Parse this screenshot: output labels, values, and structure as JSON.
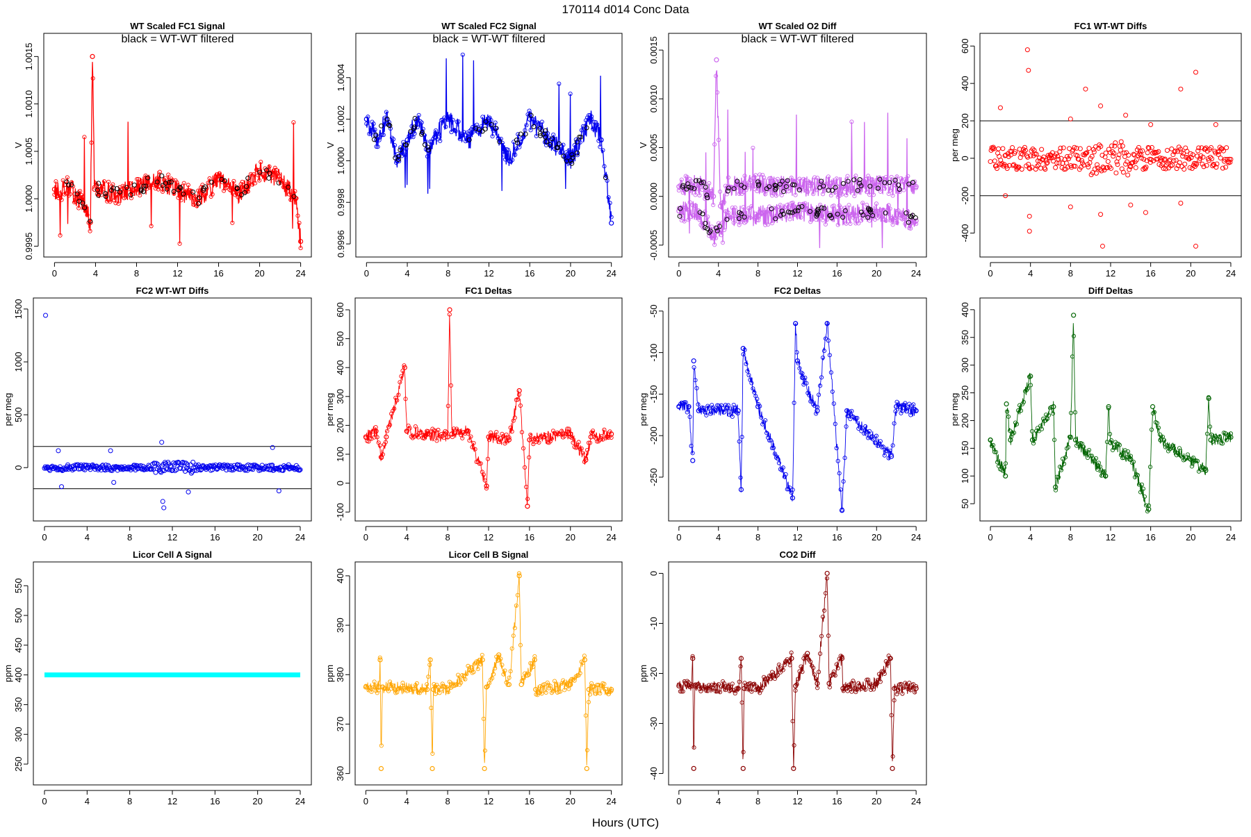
{
  "figure": {
    "title": "170114    d014    Conc Data",
    "xlabel": "Hours (UTC)",
    "xticks": [
      0,
      4,
      8,
      12,
      16,
      20,
      24
    ]
  },
  "chart_data": [
    {
      "type": "line",
      "title": "WT Scaled FC1 Signal",
      "annotation": "black = WT-WT filtered",
      "ylabel": "V",
      "yticks": [
        "0.9995",
        "1.0000",
        "1.0005",
        "1.0010",
        "1.0015"
      ],
      "xlim": [
        0,
        24
      ],
      "ylim": [
        0.99948,
        1.00165
      ],
      "color": "#ff0000",
      "series": [
        {
          "values_by_hour": [
            [
              0,
              1.0001
            ],
            [
              0.5,
              1.00005
            ],
            [
              1,
              1.00015
            ],
            [
              2,
              1.00005
            ],
            [
              3,
              0.9999
            ],
            [
              3.5,
              0.99975
            ],
            [
              3.7,
              1.0015
            ],
            [
              3.9,
              1.0001
            ],
            [
              4.5,
              1.0001
            ],
            [
              6,
              1.00005
            ],
            [
              8,
              1.0001
            ],
            [
              10,
              1.0002
            ],
            [
              12,
              1.0001
            ],
            [
              14,
              1.0
            ],
            [
              16,
              1.0002
            ],
            [
              18,
              1.00005
            ],
            [
              20,
              1.0003
            ],
            [
              22,
              1.0002
            ],
            [
              23.5,
              1.0
            ],
            [
              24,
              0.99955
            ]
          ]
        }
      ]
    },
    {
      "type": "line",
      "title": "WT Scaled FC2 Signal",
      "annotation": "black = WT-WT filtered",
      "ylabel": "V",
      "yticks": [
        "0.9996",
        "0.9998",
        "1.0000",
        "1.0002",
        "1.0004"
      ],
      "xlim": [
        0,
        24
      ],
      "ylim": [
        0.99958,
        1.00057
      ],
      "color": "#0000ee",
      "series": [
        {
          "values_by_hour": [
            [
              0,
              1.0002
            ],
            [
              1,
              1.0001
            ],
            [
              2,
              1.0002
            ],
            [
              3,
              1.0
            ],
            [
              4,
              1.0001
            ],
            [
              5,
              1.0002
            ],
            [
              6,
              1.00005
            ],
            [
              8,
              1.0002
            ],
            [
              10,
              1.0001
            ],
            [
              12,
              1.0002
            ],
            [
              14,
              1.0
            ],
            [
              16,
              1.0002
            ],
            [
              18,
              1.0001
            ],
            [
              20,
              1.0
            ],
            [
              22,
              1.0002
            ],
            [
              23,
              1.0001
            ],
            [
              24,
              0.9997
            ]
          ]
        }
      ]
    },
    {
      "type": "line",
      "title": "WT Scaled O2 Diff",
      "annotation": "black = WT-WT filtered",
      "ylabel": "V",
      "yticks": [
        "-0.0005",
        "0.0000",
        "0.0005",
        "0.0010",
        "0.0015"
      ],
      "xlim": [
        0,
        24
      ],
      "ylim": [
        -0.00053,
        0.00158
      ],
      "color": "#cc66ee",
      "series": [
        {
          "name": "upper",
          "values_by_hour": [
            [
              0,
              0.0001
            ],
            [
              2,
              0.00012
            ],
            [
              3.5,
              0.0
            ],
            [
              3.8,
              0.0014
            ],
            [
              4.2,
              -0.0001
            ],
            [
              5,
              0.0001
            ],
            [
              8,
              0.00012
            ],
            [
              12,
              0.0001
            ],
            [
              16,
              0.0001
            ],
            [
              20,
              0.00012
            ],
            [
              24,
              0.0001
            ]
          ]
        },
        {
          "name": "lower",
          "values_by_hour": [
            [
              0,
              -0.00015
            ],
            [
              2,
              -0.00015
            ],
            [
              3.5,
              -0.0004
            ],
            [
              4.2,
              -0.00035
            ],
            [
              5,
              -0.0002
            ],
            [
              8,
              -0.0002
            ],
            [
              12,
              -0.00015
            ],
            [
              16,
              -0.0002
            ],
            [
              20,
              -0.00015
            ],
            [
              24,
              -0.00025
            ]
          ]
        }
      ]
    },
    {
      "type": "scatter",
      "title": "FC1 WT-WT Diffs",
      "ylabel": "per meg",
      "yticks": [
        "-400",
        "-200",
        "0",
        "200",
        "400",
        "600"
      ],
      "xlim": [
        0,
        24
      ],
      "ylim": [
        -480,
        620
      ],
      "hlines": [
        200,
        -200
      ],
      "color": "#ff0000",
      "series": [
        {
          "points": [
            [
              1,
              270
            ],
            [
              1.5,
              -200
            ],
            [
              3.7,
              580
            ],
            [
              3.8,
              470
            ],
            [
              3.9,
              -310
            ],
            [
              3.9,
              -390
            ],
            [
              8,
              210
            ],
            [
              8,
              -260
            ],
            [
              9.5,
              370
            ],
            [
              11,
              280
            ],
            [
              11,
              -300
            ],
            [
              11.2,
              -470
            ],
            [
              13.5,
              230
            ],
            [
              14,
              -250
            ],
            [
              15.5,
              -290
            ],
            [
              16,
              180
            ],
            [
              19,
              370
            ],
            [
              19,
              -240
            ],
            [
              20.5,
              460
            ],
            [
              20.5,
              -470
            ],
            [
              22.5,
              180
            ]
          ]
        }
      ]
    },
    {
      "type": "scatter",
      "title": "FC2 WT-WT Diffs",
      "ylabel": "per meg",
      "yticks": [
        "0",
        "500",
        "1000",
        "1500"
      ],
      "xlim": [
        0,
        24
      ],
      "ylim": [
        -420,
        1520
      ],
      "hlines": [
        200,
        -200
      ],
      "color": "#0000ee",
      "series": [
        {
          "points": [
            [
              0.1,
              1440
            ],
            [
              1.3,
              160
            ],
            [
              1.6,
              -180
            ],
            [
              6.2,
              160
            ],
            [
              6.5,
              -140
            ],
            [
              11,
              240
            ],
            [
              11.1,
              -320
            ],
            [
              11.2,
              -380
            ],
            [
              13.5,
              -230
            ],
            [
              21.4,
              190
            ],
            [
              22,
              -220
            ]
          ]
        }
      ]
    },
    {
      "type": "line",
      "title": "FC1 Deltas",
      "ylabel": "per meg",
      "yticks": [
        "-100",
        "0",
        "100",
        "200",
        "300",
        "400",
        "500",
        "600"
      ],
      "xlim": [
        0,
        24
      ],
      "ylim": [
        -100,
        610
      ],
      "color": "#ff0000",
      "series": [
        {
          "values_by_hour": [
            [
              0,
              160
            ],
            [
              1,
              180
            ],
            [
              1.5,
              90
            ],
            [
              2,
              160
            ],
            [
              3.8,
              400
            ],
            [
              4,
              180
            ],
            [
              6,
              170
            ],
            [
              8,
              160
            ],
            [
              8.2,
              600
            ],
            [
              8.4,
              170
            ],
            [
              10,
              180
            ],
            [
              11.8,
              -10
            ],
            [
              12,
              160
            ],
            [
              14,
              150
            ],
            [
              15,
              320
            ],
            [
              15.8,
              -80
            ],
            [
              16,
              150
            ],
            [
              20,
              170
            ],
            [
              21.5,
              80
            ],
            [
              22,
              160
            ],
            [
              24,
              170
            ]
          ]
        }
      ]
    },
    {
      "type": "line",
      "title": "FC2 Deltas",
      "ylabel": "per meg",
      "yticks": [
        "-250",
        "-200",
        "-150",
        "-100",
        "-50"
      ],
      "xlim": [
        0,
        24
      ],
      "ylim": [
        -292,
        -45
      ],
      "color": "#0000ee",
      "series": [
        {
          "values_by_hour": [
            [
              0,
              -165
            ],
            [
              1,
              -165
            ],
            [
              1.4,
              -230
            ],
            [
              1.5,
              -110
            ],
            [
              2,
              -170
            ],
            [
              6,
              -170
            ],
            [
              6.3,
              -265
            ],
            [
              6.5,
              -95
            ],
            [
              8,
              -165
            ],
            [
              11.5,
              -275
            ],
            [
              11.8,
              -65
            ],
            [
              12,
              -110
            ],
            [
              12.5,
              -130
            ],
            [
              14,
              -170
            ],
            [
              15,
              -65
            ],
            [
              16.5,
              -290
            ],
            [
              17,
              -170
            ],
            [
              21.5,
              -225
            ],
            [
              22,
              -165
            ],
            [
              24,
              -170
            ]
          ]
        }
      ]
    },
    {
      "type": "line",
      "title": "Diff Deltas",
      "ylabel": "per meg",
      "yticks": [
        "50",
        "100",
        "150",
        "200",
        "250",
        "300",
        "350",
        "400"
      ],
      "xlim": [
        0,
        24
      ],
      "ylim": [
        35,
        405
      ],
      "color": "#006400",
      "series": [
        {
          "values_by_hour": [
            [
              0,
              165
            ],
            [
              1.5,
              100
            ],
            [
              1.6,
              230
            ],
            [
              2,
              165
            ],
            [
              4,
              280
            ],
            [
              4.2,
              165
            ],
            [
              6.3,
              225
            ],
            [
              6.5,
              80
            ],
            [
              8,
              170
            ],
            [
              8.3,
              390
            ],
            [
              8.5,
              165
            ],
            [
              11.5,
              100
            ],
            [
              11.8,
              225
            ],
            [
              12,
              160
            ],
            [
              14,
              130
            ],
            [
              15.8,
              40
            ],
            [
              16.2,
              225
            ],
            [
              17,
              165
            ],
            [
              21.5,
              110
            ],
            [
              21.8,
              240
            ],
            [
              22,
              165
            ],
            [
              24,
              170
            ]
          ]
        }
      ]
    },
    {
      "type": "line",
      "title": "Licor Cell A Signal",
      "ylabel": "ppm",
      "yticks": [
        "250",
        "300",
        "350",
        "400",
        "450",
        "500",
        "550"
      ],
      "xlim": [
        0,
        24
      ],
      "ylim": [
        230,
        575
      ],
      "color": "#00ffff",
      "series": [
        {
          "values_by_hour": [
            [
              0,
              400
            ],
            [
              24,
              400
            ]
          ]
        }
      ]
    },
    {
      "type": "line",
      "title": "Licor Cell B Signal",
      "ylabel": "ppm",
      "yticks": [
        "360",
        "370",
        "380",
        "390",
        "400"
      ],
      "xlim": [
        0,
        24
      ],
      "ylim": [
        359.5,
        401
      ],
      "color": "#ffa500",
      "series": [
        {
          "values_by_hour": [
            [
              0,
              377.5
            ],
            [
              1.3,
              377.5
            ],
            [
              1.4,
              383
            ],
            [
              1.5,
              361
            ],
            [
              1.6,
              377.5
            ],
            [
              6,
              377
            ],
            [
              6.3,
              383
            ],
            [
              6.5,
              361
            ],
            [
              6.6,
              377
            ],
            [
              8,
              377
            ],
            [
              11.4,
              383
            ],
            [
              11.6,
              361
            ],
            [
              11.8,
              377.5
            ],
            [
              13,
              384
            ],
            [
              14,
              378
            ],
            [
              15,
              400
            ],
            [
              15.2,
              378
            ],
            [
              16.5,
              383
            ],
            [
              16.6,
              377
            ],
            [
              20,
              378
            ],
            [
              21.4,
              383
            ],
            [
              21.6,
              361
            ],
            [
              21.8,
              377
            ],
            [
              24,
              377
            ]
          ]
        }
      ]
    },
    {
      "type": "line",
      "title": "CO2 Diff",
      "ylabel": "ppm",
      "yticks": [
        "-40",
        "-30",
        "-20",
        "-10",
        "0"
      ],
      "xlim": [
        0,
        24
      ],
      "ylim": [
        -40.5,
        0.5
      ],
      "color": "#8b0000",
      "series": [
        {
          "values_by_hour": [
            [
              0,
              -22.5
            ],
            [
              1.3,
              -22.5
            ],
            [
              1.4,
              -17
            ],
            [
              1.5,
              -39
            ],
            [
              1.6,
              -22.5
            ],
            [
              6,
              -23
            ],
            [
              6.3,
              -17
            ],
            [
              6.5,
              -39
            ],
            [
              6.6,
              -23
            ],
            [
              8,
              -23
            ],
            [
              11.4,
              -17
            ],
            [
              11.6,
              -39
            ],
            [
              11.8,
              -22.5
            ],
            [
              13,
              -16
            ],
            [
              14,
              -22
            ],
            [
              15,
              0
            ],
            [
              15.2,
              -22
            ],
            [
              16.5,
              -17
            ],
            [
              16.6,
              -23
            ],
            [
              20,
              -22
            ],
            [
              21.4,
              -17
            ],
            [
              21.6,
              -39
            ],
            [
              21.8,
              -23
            ],
            [
              24,
              -23
            ]
          ]
        }
      ]
    }
  ]
}
